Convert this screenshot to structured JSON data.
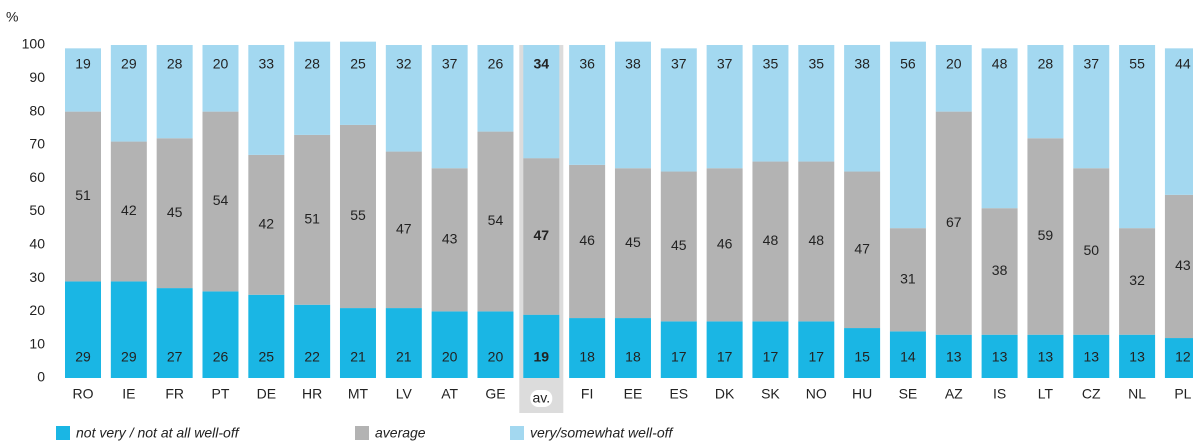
{
  "chart_data": {
    "type": "stacked_bar",
    "y_axis_label": "%",
    "categories": [
      "RO",
      "IE",
      "FR",
      "PT",
      "DE",
      "HR",
      "MT",
      "LV",
      "AT",
      "GE",
      "av.",
      "FI",
      "EE",
      "ES",
      "DK",
      "SK",
      "NO",
      "HU",
      "SE",
      "AZ",
      "IS",
      "LT",
      "CZ",
      "NL",
      "PL"
    ],
    "highlight_index": 10,
    "series": [
      {
        "name": "not very / not at all well-off",
        "color": "#1ab6e4",
        "values": [
          29,
          29,
          27,
          26,
          25,
          22,
          21,
          21,
          20,
          20,
          19,
          18,
          18,
          17,
          17,
          17,
          17,
          15,
          14,
          13,
          13,
          13,
          13,
          13,
          12
        ]
      },
      {
        "name": "average",
        "color": "#b3b3b3",
        "values": [
          51,
          42,
          45,
          54,
          42,
          51,
          55,
          47,
          43,
          54,
          47,
          46,
          45,
          45,
          46,
          48,
          48,
          47,
          31,
          67,
          38,
          59,
          50,
          32,
          43
        ]
      },
      {
        "name": "very/somewhat well-off",
        "color": "#a3d8f0",
        "values": [
          19,
          29,
          28,
          20,
          33,
          28,
          25,
          32,
          37,
          26,
          34,
          36,
          38,
          37,
          37,
          35,
          35,
          38,
          56,
          20,
          48,
          28,
          37,
          55,
          44
        ]
      }
    ],
    "ylim": [
      0,
      100
    ],
    "yticks": [
      0,
      10,
      20,
      30,
      40,
      50,
      60,
      70,
      80,
      90,
      100
    ]
  }
}
